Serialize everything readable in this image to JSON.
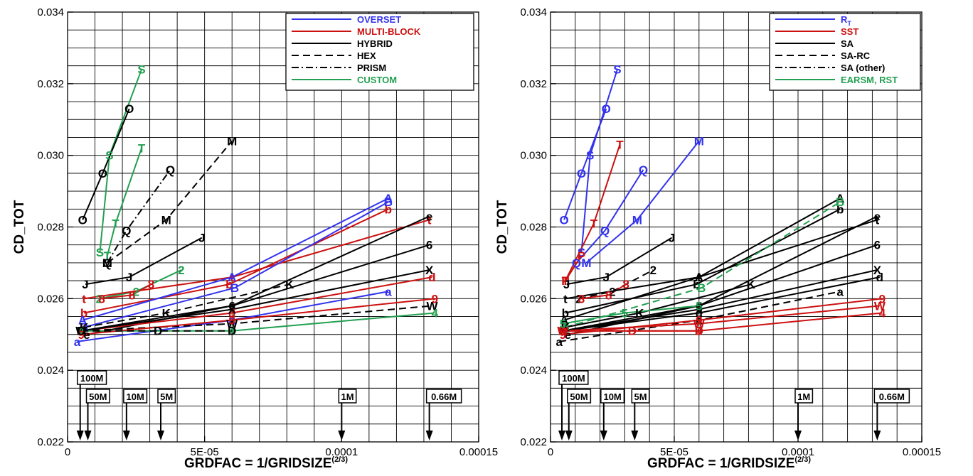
{
  "colors": {
    "blue": "#3333ee",
    "red": "#cc1111",
    "black": "#000000",
    "green": "#22a050"
  },
  "chart_data": [
    {
      "type": "line",
      "xlabel": "GRDFAC = 1/GRIDSIZE",
      "xlabel_sup": "(2/3)",
      "ylabel": "CD_TOT",
      "xlim": [
        0,
        0.00015
      ],
      "ylim": [
        0.022,
        0.034
      ],
      "x_ticks": [
        0,
        5e-05,
        0.0001,
        0.00015
      ],
      "x_tick_labels": [
        "0",
        "5E-05",
        "0.0001",
        "0.00015"
      ],
      "y_ticks": [
        0.022,
        0.024,
        0.026,
        0.028,
        0.03,
        0.032,
        0.034
      ],
      "y_tick_labels": [
        "0.022",
        "0.024",
        "0.026",
        "0.028",
        "0.030",
        "0.032",
        "0.034"
      ],
      "grid": true,
      "legend_position": "top-right",
      "legend": [
        {
          "label": "OVERSET",
          "color": "blue",
          "dash": "solid"
        },
        {
          "label": "MULTI-BLOCK",
          "color": "red",
          "dash": "solid"
        },
        {
          "label": "HYBRID",
          "color": "black",
          "dash": "solid"
        },
        {
          "label": "HEX",
          "color": "black",
          "dash": "dashed"
        },
        {
          "label": "PRISM",
          "color": "black",
          "dash": "dashdot"
        },
        {
          "label": "CUSTOM",
          "color": "green",
          "dash": "solid"
        }
      ],
      "grid_size_markers": [
        {
          "label": "100M",
          "x": 4.6e-06
        },
        {
          "label": "50M",
          "x": 7.4e-06
        },
        {
          "label": "10M",
          "x": 2.15e-05
        },
        {
          "label": "5M",
          "x": 3.4e-05
        },
        {
          "label": "1M",
          "x": 0.0001
        },
        {
          "label": "0.66M",
          "x": 0.000132
        }
      ],
      "series": [
        {
          "letter": "S",
          "color": "green",
          "dash": "solid",
          "x": [
            1.18e-05,
            1.53e-05,
            2.7e-05
          ],
          "y": [
            0.0273,
            0.03,
            0.0324
          ]
        },
        {
          "letter": "T",
          "color": "green",
          "dash": "solid",
          "x": [
            1.45e-05,
            1.75e-05,
            2.7e-05
          ],
          "y": [
            0.0272,
            0.0281,
            0.0302
          ]
        },
        {
          "letter": "O",
          "color": "black",
          "dash": "solid",
          "x": [
            5.5e-06,
            1.28e-05,
            2.25e-05
          ],
          "y": [
            0.0282,
            0.0295,
            0.0313
          ]
        },
        {
          "letter": "M",
          "color": "black",
          "dash": "dashed",
          "x": [
            1.45e-05,
            3.6e-05,
            6e-05
          ],
          "y": [
            0.027,
            0.0282,
            0.0304
          ]
        },
        {
          "letter": "Q",
          "color": "black",
          "dash": "dashdot",
          "x": [
            1.45e-05,
            2.15e-05,
            3.75e-05
          ],
          "y": [
            0.027,
            0.0279,
            0.0296
          ]
        },
        {
          "letter": "J",
          "color": "black",
          "dash": "solid",
          "x": [
            6.5e-06,
            2.25e-05,
            4.9e-05
          ],
          "y": [
            0.0264,
            0.0266,
            0.0277
          ]
        },
        {
          "letter": "2",
          "color": "green",
          "dash": "solid",
          "x": [
            1.15e-05,
            2.5e-05,
            4.15e-05
          ],
          "y": [
            0.026,
            0.0262,
            0.0268
          ]
        },
        {
          "letter": "8",
          "color": "red",
          "dash": "solid",
          "x": [
            1.25e-05,
            2.35e-05,
            3.05e-05
          ],
          "y": [
            0.026,
            0.0261,
            0.0264
          ]
        },
        {
          "letter": "t",
          "color": "red",
          "dash": "solid",
          "x": [
            6e-06,
            6e-05,
            0.000132
          ],
          "y": [
            0.026,
            0.0266,
            0.0282
          ]
        },
        {
          "letter": "b",
          "color": "red",
          "dash": "solid",
          "x": [
            6e-06,
            5.9e-05,
            0.000117
          ],
          "y": [
            0.0256,
            0.0264,
            0.0285
          ]
        },
        {
          "letter": "A",
          "color": "blue",
          "dash": "solid",
          "x": [
            5.5e-06,
            6e-05,
            0.000117
          ],
          "y": [
            0.0254,
            0.0266,
            0.0288
          ]
        },
        {
          "letter": "B",
          "color": "blue",
          "dash": "solid",
          "x": [
            6e-06,
            6.1e-05,
            0.000117
          ],
          "y": [
            0.0252,
            0.0263,
            0.0287
          ]
        },
        {
          "letter": "e",
          "color": "black",
          "dash": "solid",
          "x": [
            7e-06,
            6e-05,
            0.000132
          ],
          "y": [
            0.025,
            0.0258,
            0.0283
          ]
        },
        {
          "letter": "6",
          "color": "black",
          "dash": "solid",
          "x": [
            5e-06,
            6e-05,
            0.000132
          ],
          "y": [
            0.0251,
            0.0258,
            0.0275
          ]
        },
        {
          "letter": "K",
          "color": "black",
          "dash": "dashed",
          "x": [
            6e-06,
            3.6e-05,
            8.1e-05
          ],
          "y": [
            0.0252,
            0.0256,
            0.0264
          ]
        },
        {
          "letter": "d",
          "color": "red",
          "dash": "solid",
          "x": [
            5e-06,
            6e-05,
            0.000133
          ],
          "y": [
            0.0251,
            0.0256,
            0.0266
          ]
        },
        {
          "letter": "X",
          "color": "black",
          "dash": "solid",
          "x": [
            5e-06,
            6e-05,
            0.000132
          ],
          "y": [
            0.0251,
            0.0257,
            0.0268
          ]
        },
        {
          "letter": "a",
          "color": "blue",
          "dash": "solid",
          "x": [
            3.5e-06,
            6e-05,
            0.000117
          ],
          "y": [
            0.0248,
            0.0254,
            0.0262
          ]
        },
        {
          "letter": "W",
          "color": "black",
          "dash": "dashed",
          "x": [
            5e-06,
            6e-05,
            0.000133
          ],
          "y": [
            0.0251,
            0.0253,
            0.0258
          ]
        },
        {
          "letter": "4",
          "color": "green",
          "dash": "solid",
          "x": [
            5e-06,
            6e-05,
            0.000134
          ],
          "y": [
            0.0251,
            0.0251,
            0.0256
          ]
        },
        {
          "letter": "9",
          "color": "red",
          "dash": "solid",
          "x": [
            5e-06,
            6e-05,
            0.000134
          ],
          "y": [
            0.025,
            0.0254,
            0.026
          ]
        },
        {
          "letter": "D",
          "color": "black",
          "dash": "dashed",
          "x": [
            5e-06,
            3.3e-05,
            6e-05
          ],
          "y": [
            0.0251,
            0.0251,
            0.0251
          ]
        }
      ]
    },
    {
      "type": "line",
      "xlabel": "GRDFAC = 1/GRIDSIZE",
      "xlabel_sup": "(2/3)",
      "ylabel": "CD_TOT",
      "xlim": [
        0,
        0.00015
      ],
      "ylim": [
        0.022,
        0.034
      ],
      "x_ticks": [
        0,
        5e-05,
        0.0001,
        0.00015
      ],
      "x_tick_labels": [
        "0",
        "5E-05",
        "0.0001",
        "0.00015"
      ],
      "y_ticks": [
        0.022,
        0.024,
        0.026,
        0.028,
        0.03,
        0.032,
        0.034
      ],
      "y_tick_labels": [
        "0.022",
        "0.024",
        "0.026",
        "0.028",
        "0.030",
        "0.032",
        "0.034"
      ],
      "grid": true,
      "legend_position": "top-right",
      "legend": [
        {
          "label": "R",
          "label_sub": "T",
          "color": "blue",
          "dash": "solid"
        },
        {
          "label": "SST",
          "color": "red",
          "dash": "solid"
        },
        {
          "label": "SA",
          "color": "black",
          "dash": "solid"
        },
        {
          "label": "SA-RC",
          "color": "black",
          "dash": "dashed"
        },
        {
          "label": "SA (other)",
          "color": "black",
          "dash": "dashdot"
        },
        {
          "label": "EARSM, RST",
          "color": "green",
          "dash": "solid"
        }
      ],
      "grid_size_markers": [
        {
          "label": "100M",
          "x": 4.6e-06
        },
        {
          "label": "50M",
          "x": 7.4e-06
        },
        {
          "label": "10M",
          "x": 2.15e-05
        },
        {
          "label": "5M",
          "x": 3.4e-05
        },
        {
          "label": "1M",
          "x": 0.0001
        },
        {
          "label": "0.66M",
          "x": 0.000132
        }
      ],
      "series": [
        {
          "letter": "S",
          "color": "blue",
          "dash": "solid",
          "x": [
            1.25e-05,
            1.6e-05,
            2.7e-05
          ],
          "y": [
            0.0273,
            0.03,
            0.0324
          ]
        },
        {
          "letter": "O",
          "color": "blue",
          "dash": "solid",
          "x": [
            5.5e-06,
            1.25e-05,
            2.25e-05
          ],
          "y": [
            0.0282,
            0.0295,
            0.0313
          ]
        },
        {
          "letter": "M",
          "color": "blue",
          "dash": "solid",
          "x": [
            1.45e-05,
            3.5e-05,
            6e-05
          ],
          "y": [
            0.027,
            0.0282,
            0.0304
          ]
        },
        {
          "letter": "Q",
          "color": "blue",
          "dash": "solid",
          "x": [
            1.05e-05,
            2.2e-05,
            3.75e-05
          ],
          "y": [
            0.027,
            0.0279,
            0.0296
          ]
        },
        {
          "letter": "T",
          "color": "red",
          "dash": "solid",
          "x": [
            6e-06,
            1.75e-05,
            2.8e-05
          ],
          "y": [
            0.0265,
            0.0281,
            0.0303
          ]
        },
        {
          "letter": "P",
          "color": "red",
          "dash": "solid",
          "x": [
            6e-06,
            1.25e-05
          ],
          "y": [
            0.0265,
            0.0272
          ]
        },
        {
          "letter": "J",
          "color": "black",
          "dash": "solid",
          "x": [
            6.5e-06,
            2.25e-05,
            4.9e-05
          ],
          "y": [
            0.0264,
            0.0266,
            0.0277
          ]
        },
        {
          "letter": "2",
          "color": "black",
          "dash": "dashed",
          "x": [
            1.15e-05,
            2.5e-05,
            4.15e-05
          ],
          "y": [
            0.026,
            0.0262,
            0.0268
          ]
        },
        {
          "letter": "8",
          "color": "red",
          "dash": "solid",
          "x": [
            1.25e-05,
            2.35e-05,
            3.05e-05
          ],
          "y": [
            0.026,
            0.0261,
            0.0264
          ]
        },
        {
          "letter": "t",
          "color": "black",
          "dash": "solid",
          "x": [
            6e-06,
            6e-05,
            0.000132
          ],
          "y": [
            0.026,
            0.0266,
            0.0282
          ]
        },
        {
          "letter": "b",
          "color": "black",
          "dash": "solid",
          "x": [
            6e-06,
            5.9e-05,
            0.000117
          ],
          "y": [
            0.0256,
            0.0264,
            0.0285
          ]
        },
        {
          "letter": "A",
          "color": "black",
          "dash": "solid",
          "x": [
            5.5e-06,
            6e-05,
            0.000117
          ],
          "y": [
            0.0254,
            0.0266,
            0.0288
          ]
        },
        {
          "letter": "B",
          "color": "green",
          "dash": "dashed",
          "x": [
            6e-06,
            6.1e-05,
            0.000117
          ],
          "y": [
            0.0252,
            0.0263,
            0.0287
          ]
        },
        {
          "letter": "e",
          "color": "black",
          "dash": "solid",
          "x": [
            7e-06,
            6e-05,
            0.000132
          ],
          "y": [
            0.025,
            0.0258,
            0.0283
          ]
        },
        {
          "letter": "6",
          "color": "black",
          "dash": "solid",
          "x": [
            5e-06,
            6e-05,
            0.000132
          ],
          "y": [
            0.0251,
            0.0258,
            0.0275
          ]
        },
        {
          "letter": "K",
          "color": "black",
          "dash": "solid",
          "x": [
            6e-06,
            3.6e-05,
            8.1e-05
          ],
          "y": [
            0.0252,
            0.0256,
            0.0264
          ]
        },
        {
          "letter": "d",
          "color": "black",
          "dash": "solid",
          "x": [
            5e-06,
            6e-05,
            0.000133
          ],
          "y": [
            0.0251,
            0.0256,
            0.0266
          ]
        },
        {
          "letter": "X",
          "color": "black",
          "dash": "solid",
          "x": [
            5e-06,
            6e-05,
            0.000132
          ],
          "y": [
            0.0251,
            0.0257,
            0.0268
          ]
        },
        {
          "letter": "a",
          "color": "black",
          "dash": "dashed",
          "x": [
            3.5e-06,
            6e-05,
            0.000117
          ],
          "y": [
            0.0248,
            0.0254,
            0.0262
          ]
        },
        {
          "letter": "W",
          "color": "red",
          "dash": "solid",
          "x": [
            5e-06,
            6e-05,
            0.000133
          ],
          "y": [
            0.0251,
            0.0253,
            0.0258
          ]
        },
        {
          "letter": "4",
          "color": "red",
          "dash": "solid",
          "x": [
            5e-06,
            6e-05,
            0.000134
          ],
          "y": [
            0.0251,
            0.0251,
            0.0256
          ]
        },
        {
          "letter": "9",
          "color": "red",
          "dash": "solid",
          "x": [
            5e-06,
            6e-05,
            0.000134
          ],
          "y": [
            0.025,
            0.0254,
            0.026
          ]
        },
        {
          "letter": "D",
          "color": "red",
          "dash": "solid",
          "x": [
            5e-06,
            3.3e-05,
            6e-05
          ],
          "y": [
            0.0251,
            0.0251,
            0.0251
          ]
        },
        {
          "letter": "5",
          "color": "green",
          "dash": "solid",
          "x": [
            5e-06,
            3e-05,
            6e-05
          ],
          "y": [
            0.0253,
            0.0256,
            0.0258
          ]
        }
      ]
    }
  ]
}
